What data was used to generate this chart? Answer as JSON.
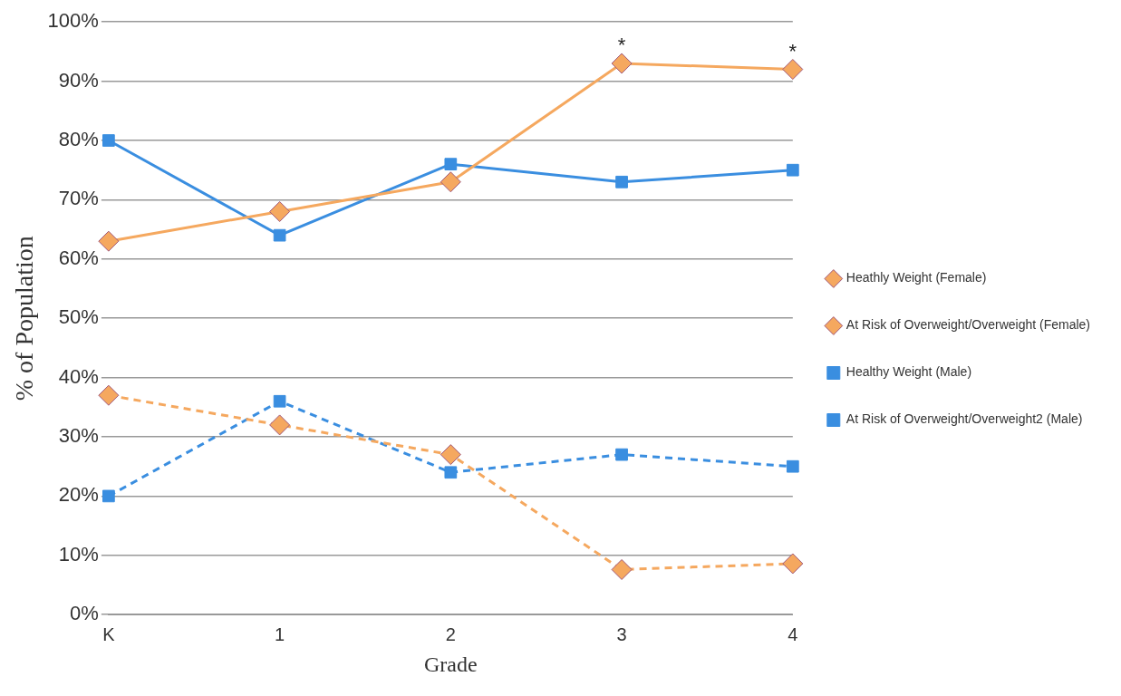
{
  "chart_data": {
    "type": "line",
    "xlabel": "Grade",
    "ylabel": "% of Population",
    "categories": [
      "K",
      "1",
      "2",
      "3",
      "4"
    ],
    "series": [
      {
        "name": "Heathly Weight (Female)",
        "color": "#f5a85f",
        "marker": "diamond",
        "line_style": "solid",
        "values": [
          63,
          68,
          73,
          93,
          92
        ]
      },
      {
        "name": "At Risk of Overweight/Overweight (Female)",
        "color": "#f5a85f",
        "marker": "diamond",
        "line_style": "dashed",
        "values": [
          37,
          32,
          27,
          7.6,
          8.6
        ]
      },
      {
        "name": "Healthy Weight (Male)",
        "color": "#3a8ee0",
        "marker": "square",
        "line_style": "solid",
        "values": [
          80,
          64,
          76,
          73,
          75
        ]
      },
      {
        "name": "At Risk of Overweight/Overweight2 (Male)",
        "color": "#3a8ee0",
        "marker": "square",
        "line_style": "dashed",
        "values": [
          20,
          36,
          24,
          27,
          25
        ]
      }
    ],
    "ylim": [
      0,
      100
    ],
    "yticks": [
      {
        "value": 0,
        "label": "0%"
      },
      {
        "value": 10,
        "label": "10%"
      },
      {
        "value": 20,
        "label": "20%"
      },
      {
        "value": 30,
        "label": "30%"
      },
      {
        "value": 40,
        "label": "40%"
      },
      {
        "value": 50,
        "label": "50%"
      },
      {
        "value": 60,
        "label": "60%"
      },
      {
        "value": 70,
        "label": "70%"
      },
      {
        "value": 80,
        "label": "80%"
      },
      {
        "value": 90,
        "label": "90%"
      },
      {
        "value": 100,
        "label": "100%"
      }
    ],
    "grid": "y",
    "legend": "right",
    "annotations": [
      {
        "text": "*",
        "x": "3",
        "y": 93
      },
      {
        "text": "*",
        "x": "4",
        "y": 92
      }
    ]
  }
}
